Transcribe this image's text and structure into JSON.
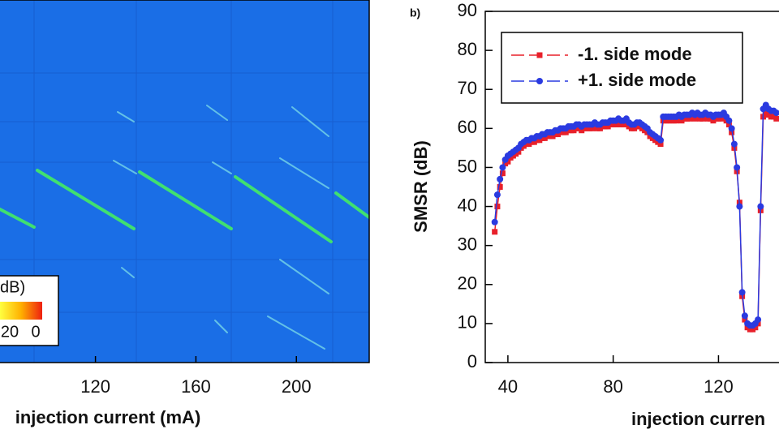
{
  "chart_data": [
    {
      "type": "heatmap",
      "x_label": "injection current (mA)",
      "xlim": [
        82,
        229
      ],
      "xticks": [
        120,
        160,
        200
      ],
      "colorbar_label": "dB)",
      "colorbar_ticks": [
        20,
        0
      ]
    },
    {
      "type": "line",
      "panel_label": "b)",
      "y_label": "SMSR (dB)",
      "x_label": "injection curren",
      "xlim": [
        31.4,
        154.7
      ],
      "xticks": [
        40,
        80,
        120
      ],
      "ylim": [
        0,
        90
      ],
      "yticks": [
        0,
        10,
        20,
        30,
        40,
        50,
        60,
        70,
        80,
        90
      ],
      "x": [
        35,
        36,
        37,
        38,
        39,
        40,
        41,
        42,
        43,
        44,
        45,
        46,
        47,
        48,
        49,
        50,
        51,
        52,
        53,
        54,
        55,
        56,
        57,
        58,
        59,
        60,
        61,
        62,
        63,
        64,
        65,
        66,
        67,
        68,
        69,
        70,
        71,
        72,
        73,
        74,
        75,
        76,
        77,
        78,
        79,
        80,
        81,
        82,
        83,
        84,
        85,
        86,
        87,
        88,
        89,
        90,
        91,
        92,
        93,
        94,
        95,
        96,
        97,
        98,
        99,
        100,
        101,
        102,
        103,
        104,
        105,
        106,
        107,
        108,
        109,
        110,
        111,
        112,
        113,
        114,
        115,
        116,
        117,
        118,
        119,
        120,
        121,
        122,
        123,
        124,
        125,
        126,
        127,
        128,
        129,
        130,
        131,
        132,
        133,
        134,
        135,
        136,
        137,
        138,
        139,
        140,
        141,
        142
      ],
      "series": [
        {
          "name": "-1. side mode",
          "color": "#e8202a",
          "marker": "square",
          "values": [
            33.5,
            40,
            45,
            48.5,
            51,
            51.5,
            52.5,
            53,
            53.5,
            54,
            55,
            55.5,
            56,
            56,
            56.5,
            56.5,
            57,
            57,
            57.5,
            57.5,
            58,
            58,
            58,
            58.5,
            58.5,
            59,
            59,
            59,
            59.5,
            59.5,
            59.5,
            60,
            60,
            59.5,
            60,
            60,
            60,
            60,
            60.5,
            60,
            60,
            60.5,
            60.5,
            60.5,
            61,
            61,
            61,
            61.5,
            61,
            61,
            61.5,
            60.5,
            60,
            60,
            60.5,
            60.5,
            60,
            59.5,
            59,
            58,
            57.5,
            57,
            56.5,
            56,
            62,
            62,
            62,
            62,
            62,
            62,
            62.5,
            62,
            62.5,
            62.5,
            62.5,
            63,
            62.5,
            63,
            62.5,
            62.5,
            63,
            62.5,
            62.5,
            62,
            62.5,
            62.5,
            62.5,
            63,
            62,
            61,
            59,
            55,
            49,
            41,
            17,
            11,
            9,
            8.5,
            8.5,
            9,
            10,
            39,
            63,
            64,
            63.5,
            63,
            63,
            62.5
          ]
        },
        {
          "name": "+1. side mode",
          "color": "#2a3ae0",
          "marker": "circle",
          "values": [
            36,
            43,
            47,
            50,
            52,
            53,
            53.5,
            54,
            54.5,
            55,
            56,
            56.5,
            57,
            57,
            57.5,
            57.5,
            58,
            58,
            58.5,
            58.5,
            59,
            59,
            59,
            59.5,
            59.5,
            60,
            60,
            60,
            60.5,
            60.5,
            60.5,
            61,
            61,
            60.5,
            61,
            61,
            61,
            61,
            61.5,
            61,
            61,
            61.5,
            61.5,
            61.5,
            62,
            62,
            62,
            62.5,
            62,
            62,
            62.5,
            61.5,
            61,
            61,
            61.5,
            61.5,
            61,
            60.5,
            60,
            59,
            58.5,
            58,
            57.5,
            57,
            63,
            63,
            63,
            63,
            63,
            63,
            63.5,
            63,
            63.5,
            63.5,
            63.5,
            64,
            63.5,
            64,
            63.5,
            63.5,
            64,
            63.5,
            63.5,
            63,
            63.5,
            63.5,
            63.5,
            64,
            63,
            62,
            60,
            56,
            50,
            40,
            18,
            12,
            10,
            9.5,
            9.5,
            10,
            11,
            40,
            65,
            66,
            65,
            64.5,
            64.5,
            64
          ]
        }
      ]
    }
  ]
}
